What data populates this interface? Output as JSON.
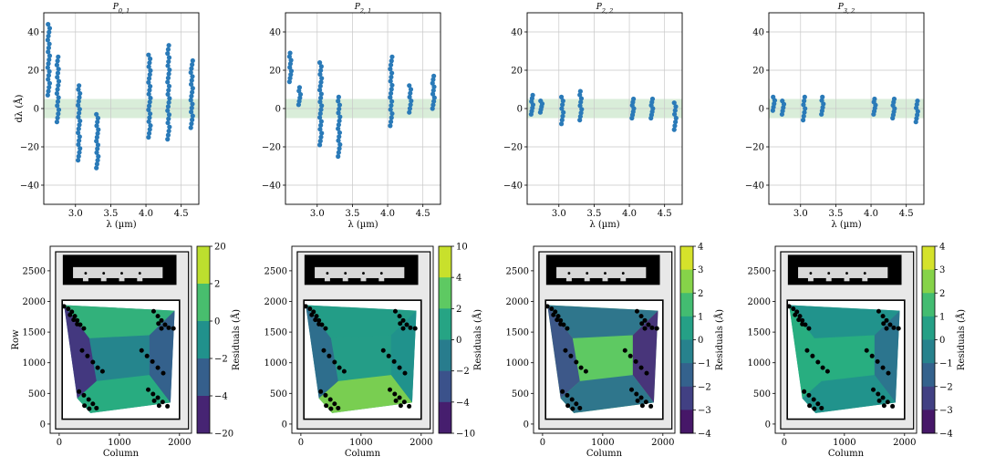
{
  "colors": {
    "points": "#2a7ab8",
    "band": "#cfe8cf",
    "grid": "#c8c8c8",
    "black": "#000000",
    "mask_bg": "#e8e8e8"
  },
  "chart_data": [
    {
      "type": "scatter",
      "title": "P_{0,1}",
      "title_main": "P",
      "title_sub": "0, 1",
      "xlabel": "λ (µm)",
      "ylabel": "dλ (Å)",
      "xlim": [
        2.55,
        4.75
      ],
      "ylim": [
        -50,
        50
      ],
      "xticks": [
        "3.0",
        "3.5",
        "4.0",
        "4.5"
      ],
      "yticks": [
        "40",
        "20",
        "0",
        "−20",
        "−40"
      ],
      "band": [
        -5,
        5
      ],
      "clusters": [
        {
          "x": 2.62,
          "min": 7,
          "max": 44
        },
        {
          "x": 2.75,
          "min": -7,
          "max": 27
        },
        {
          "x": 3.05,
          "min": -27,
          "max": 12
        },
        {
          "x": 3.31,
          "min": -31,
          "max": -3
        },
        {
          "x": 4.05,
          "min": -15,
          "max": 28
        },
        {
          "x": 4.32,
          "min": -16,
          "max": 33
        },
        {
          "x": 4.65,
          "min": -10,
          "max": 25
        }
      ]
    },
    {
      "type": "scatter",
      "title": "P_{2,1}",
      "title_main": "P",
      "title_sub": "2, 1",
      "xlabel": "λ (µm)",
      "ylabel": "",
      "xlim": [
        2.55,
        4.75
      ],
      "ylim": [
        -50,
        50
      ],
      "xticks": [
        "3.0",
        "3.5",
        "4.0",
        "4.5"
      ],
      "yticks": [
        "40",
        "20",
        "0",
        "−20",
        "−40"
      ],
      "band": [
        -5,
        5
      ],
      "clusters": [
        {
          "x": 2.62,
          "min": 14,
          "max": 29
        },
        {
          "x": 2.75,
          "min": 2,
          "max": 11
        },
        {
          "x": 3.05,
          "min": -19,
          "max": 24
        },
        {
          "x": 3.31,
          "min": -25,
          "max": 6
        },
        {
          "x": 4.05,
          "min": -9,
          "max": 27
        },
        {
          "x": 4.32,
          "min": -2,
          "max": 12
        },
        {
          "x": 4.65,
          "min": 0,
          "max": 17
        }
      ]
    },
    {
      "type": "scatter",
      "title": "P_{2,2}",
      "title_main": "P",
      "title_sub": "2, 2",
      "xlabel": "λ (µm)",
      "ylabel": "",
      "xlim": [
        2.55,
        4.75
      ],
      "ylim": [
        -50,
        50
      ],
      "xticks": [
        "3.0",
        "3.5",
        "4.0",
        "4.5"
      ],
      "yticks": [
        "40",
        "20",
        "0",
        "−20",
        "−40"
      ],
      "band": [
        -5,
        5
      ],
      "clusters": [
        {
          "x": 2.62,
          "min": -3,
          "max": 7
        },
        {
          "x": 2.75,
          "min": -2,
          "max": 4
        },
        {
          "x": 3.05,
          "min": -8,
          "max": 6
        },
        {
          "x": 3.31,
          "min": -6,
          "max": 9
        },
        {
          "x": 4.05,
          "min": -5,
          "max": 5
        },
        {
          "x": 4.32,
          "min": -5,
          "max": 5
        },
        {
          "x": 4.65,
          "min": -11,
          "max": 3
        }
      ]
    },
    {
      "type": "scatter",
      "title": "P_{3,2}",
      "title_main": "P",
      "title_sub": "3, 2",
      "xlabel": "λ (µm)",
      "ylabel": "",
      "xlim": [
        2.55,
        4.75
      ],
      "ylim": [
        -50,
        50
      ],
      "xticks": [
        "3.0",
        "3.5",
        "4.0",
        "4.5"
      ],
      "yticks": [
        "40",
        "20",
        "0",
        "−20",
        "−40"
      ],
      "band": [
        -5,
        5
      ],
      "clusters": [
        {
          "x": 2.62,
          "min": -1,
          "max": 6
        },
        {
          "x": 2.75,
          "min": -3,
          "max": 4
        },
        {
          "x": 3.05,
          "min": -6,
          "max": 6
        },
        {
          "x": 3.31,
          "min": -3,
          "max": 6
        },
        {
          "x": 4.05,
          "min": -3,
          "max": 5
        },
        {
          "x": 4.32,
          "min": -5,
          "max": 5
        },
        {
          "x": 4.65,
          "min": -7,
          "max": 4
        }
      ]
    },
    {
      "type": "heatmap",
      "xlabel": "Column",
      "ylabel": "Row",
      "xlim": [
        -150,
        2200
      ],
      "ylim": [
        -150,
        2900
      ],
      "xticks": [
        "0",
        "1000",
        "2000"
      ],
      "yticks": [
        "2500",
        "2000",
        "1500",
        "1000",
        "500",
        "0"
      ],
      "colorbar_label": "Residuals (Å)",
      "colorbar_ticks": [
        "20",
        "2",
        "0",
        "−2",
        "−4",
        "−20"
      ],
      "colorbar_range": [
        -20,
        20
      ],
      "region_values": {
        "top": 6,
        "left": -14,
        "right": -8,
        "center": -2,
        "bottom": 5
      }
    },
    {
      "type": "heatmap",
      "xlabel": "Column",
      "ylabel": "",
      "xlim": [
        -150,
        2200
      ],
      "ylim": [
        -150,
        2900
      ],
      "xticks": [
        "0",
        "1000",
        "2000"
      ],
      "yticks": [
        "2500",
        "2000",
        "1500",
        "1000",
        "500",
        "0"
      ],
      "colorbar_label": "Residuals (Å)",
      "colorbar_ticks": [
        "10",
        "4",
        "2",
        "0",
        "−2",
        "−4",
        "−10"
      ],
      "colorbar_range": [
        -10,
        10
      ],
      "region_values": {
        "top": 1,
        "left": -3,
        "right": 0,
        "center": 1,
        "bottom": 6
      }
    },
    {
      "type": "heatmap",
      "xlabel": "Column",
      "ylabel": "",
      "xlim": [
        -150,
        2200
      ],
      "ylim": [
        -150,
        2900
      ],
      "xticks": [
        "0",
        "1000",
        "2000"
      ],
      "yticks": [
        "2500",
        "2000",
        "1500",
        "1000",
        "500",
        "0"
      ],
      "colorbar_label": "Residuals (Å)",
      "colorbar_ticks": [
        "4",
        "3",
        "2",
        "1",
        "0",
        "−1",
        "−2",
        "−3",
        "−4"
      ],
      "colorbar_range": [
        -4,
        4
      ],
      "region_values": {
        "top": -1,
        "left": -2,
        "right": -3,
        "center": 2,
        "bottom": -1
      }
    },
    {
      "type": "heatmap",
      "xlabel": "Column",
      "ylabel": "",
      "xlim": [
        -150,
        2200
      ],
      "ylim": [
        -150,
        2900
      ],
      "xticks": [
        "0",
        "1000",
        "2000"
      ],
      "yticks": [
        "2500",
        "2000",
        "1500",
        "1000",
        "500",
        "0"
      ],
      "colorbar_label": "Residuals (Å)",
      "colorbar_ticks": [
        "4",
        "3",
        "2",
        "1",
        "0",
        "−1",
        "−2",
        "−3",
        "−4"
      ],
      "colorbar_range": [
        -4,
        4
      ],
      "region_values": {
        "top": 0,
        "left": 1,
        "right": -1,
        "center": 1,
        "bottom": 0
      }
    }
  ]
}
